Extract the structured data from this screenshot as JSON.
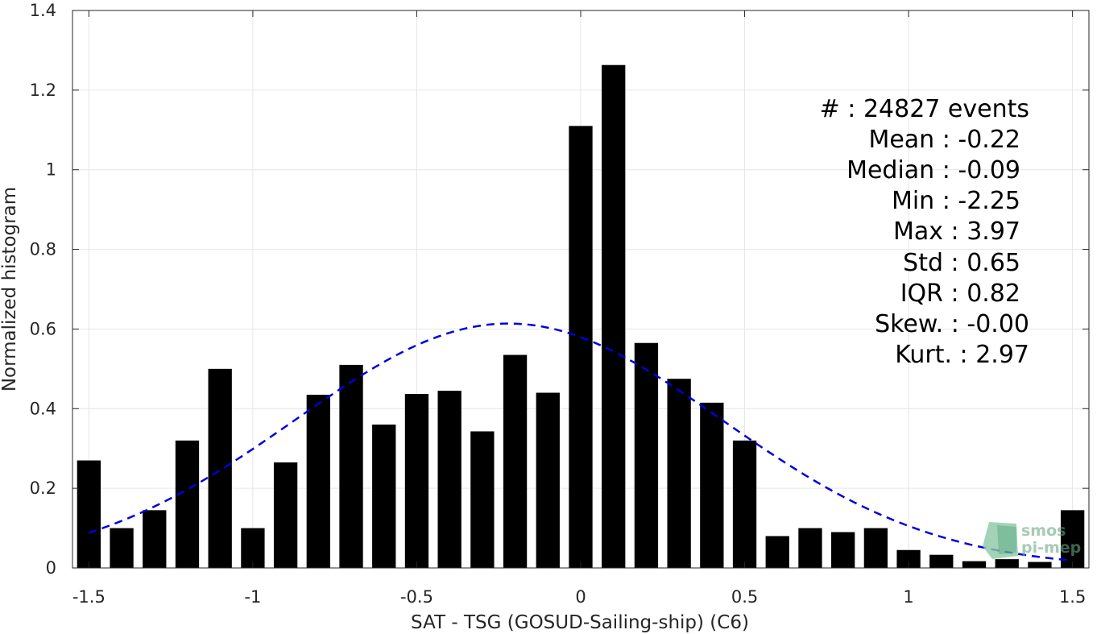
{
  "chart_data": {
    "type": "bar",
    "xlabel": "SAT - TSG (GOSUD-Sailing-ship) (C6)",
    "ylabel": "Normalized histogram",
    "xlim": [
      -1.55,
      1.55
    ],
    "ylim": [
      0,
      1.4
    ],
    "xticks": [
      -1.5,
      -1,
      -0.5,
      0,
      0.5,
      1,
      1.5
    ],
    "xtick_labels": [
      "-1.5",
      "-1",
      "-0.5",
      "0",
      "0.5",
      "1",
      "1.5"
    ],
    "yticks": [
      0,
      0.2,
      0.4,
      0.6,
      0.8,
      1,
      1.2,
      1.4
    ],
    "ytick_labels": [
      "0",
      "0.2",
      "0.4",
      "0.6",
      "0.8",
      "1",
      "1.2",
      "1.4"
    ],
    "grid": true,
    "bar_color": "#000000",
    "curve_color": "#0000dd",
    "x": [
      -1.5,
      -1.4,
      -1.3,
      -1.2,
      -1.1,
      -1.0,
      -0.9,
      -0.8,
      -0.7,
      -0.6,
      -0.5,
      -0.4,
      -0.3,
      -0.2,
      -0.1,
      0.0,
      0.1,
      0.2,
      0.3,
      0.4,
      0.5,
      0.6,
      0.7,
      0.8,
      0.9,
      1.0,
      1.1,
      1.2,
      1.3,
      1.4,
      1.5
    ],
    "values": [
      0.27,
      0.1,
      0.145,
      0.32,
      0.5,
      0.1,
      0.265,
      0.435,
      0.51,
      0.36,
      0.437,
      0.445,
      0.343,
      0.535,
      0.44,
      1.11,
      1.263,
      0.565,
      0.475,
      0.415,
      0.32,
      0.08,
      0.1,
      0.09,
      0.1,
      0.045,
      0.033,
      0.017,
      0.022,
      0.015,
      0.145
    ],
    "fit": {
      "name": "gaussian",
      "mean": -0.22,
      "std": 0.65,
      "x_range": [
        -1.5,
        1.5
      ],
      "line_style": "dashed"
    },
    "annotations": [
      "#  : 24827 events",
      "Mean : -0.22",
      "Median : -0.09",
      "Min : -2.25",
      "Max : 3.97",
      "Std : 0.65",
      "IQR : 0.82",
      "Skew. : -0.00",
      "Kurt. : 2.97"
    ]
  },
  "logo": {
    "text_line1": "smos",
    "text_line2": "pi-mep",
    "color": "#6aa884"
  }
}
